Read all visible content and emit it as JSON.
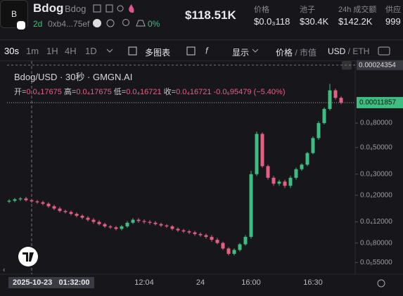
{
  "header": {
    "avatar": "B",
    "symbol": "Bdog",
    "name": "Bdog",
    "age": "2d",
    "address": "0xb4...75ef",
    "change": "0%",
    "market_cap": "$118.51K",
    "stats": [
      {
        "label": "价格",
        "value": "$0.0₃118"
      },
      {
        "label": "池子",
        "value": "$30.4K"
      },
      {
        "label": "24h 成交额",
        "value": "$142.2K"
      },
      {
        "label": "供应",
        "value": "999"
      }
    ]
  },
  "toolbar": {
    "intervals": [
      "30s",
      "1m",
      "1H",
      "4H",
      "1D"
    ],
    "multi_chart": "多图表",
    "display": "显示",
    "price": "价格",
    "market_cap": "市值",
    "usd": "USD",
    "eth": "ETH"
  },
  "chart_data": {
    "type": "candlestick",
    "title": "Bdog/USD · 30秒 · GMGN.AI",
    "ohlc_legend": {
      "open_label": "开=",
      "open": {
        "value": 1.7675e-05,
        "label": "0.0₄17675"
      },
      "high_label": "高=",
      "high": {
        "value": 1.7675e-05,
        "label": "0.0₄17675"
      },
      "low_label": "低=",
      "low": {
        "value": 1.6721e-05,
        "label": "0.0₄16721"
      },
      "close_label": "收=",
      "close": {
        "value": 1.6721e-05,
        "label": "0.0₄16721"
      },
      "change": {
        "value": -9.5479e-07,
        "label": "-0.0₆95479"
      },
      "change_pct": {
        "value": -5.4,
        "label": "(−5.40%)"
      }
    },
    "crosshair": {
      "date": "2025-10-23",
      "time": "01:32:00"
    },
    "log_scale": true,
    "up_color": "#3fbd80",
    "down_color": "#e55f84",
    "ylim": [
      4.7e-06,
      0.00027
    ],
    "yticks": [
      {
        "value": 8e-05,
        "label": "0.0₄80000"
      },
      {
        "value": 5e-05,
        "label": "0.0₄50000"
      },
      {
        "value": 3e-05,
        "label": "0.0₄30000"
      },
      {
        "value": 2e-05,
        "label": "0.0₄20000"
      },
      {
        "value": 1.2e-05,
        "label": "0.0₄12000"
      },
      {
        "value": 8e-06,
        "label": "0.0₅80000"
      },
      {
        "value": 5.5e-06,
        "label": "0.0₅55000"
      }
    ],
    "current_price": 0.00011857,
    "max_price": 0.00024354,
    "categories": [
      null,
      null,
      null,
      null,
      null,
      null,
      null,
      null,
      null,
      null,
      null,
      null,
      null,
      null,
      null,
      null,
      null,
      null,
      null,
      null,
      null,
      null,
      null,
      null,
      "12:04",
      null,
      null,
      null,
      null,
      null,
      null,
      null,
      null,
      null,
      "24",
      null,
      null,
      null,
      null,
      null,
      null,
      null,
      null,
      "16:00",
      null,
      null,
      null,
      null,
      null,
      null,
      null,
      null,
      null,
      null,
      "16:30",
      null,
      null,
      null,
      null,
      null
    ],
    "open": [
      1.77e-05,
      1.8e-05,
      1.85e-05,
      1.88e-05,
      1.82e-05,
      1.78e-05,
      1.75e-05,
      1.7e-05,
      1.62e-05,
      1.55e-05,
      1.48e-05,
      1.45e-05,
      1.4e-05,
      1.35e-05,
      1.3e-05,
      1.25e-05,
      1.2e-05,
      1.15e-05,
      1.1e-05,
      1.08e-05,
      1.05e-05,
      1.1e-05,
      1.18e-05,
      1.25e-05,
      1.22e-05,
      1.2e-05,
      1.18e-05,
      1.15e-05,
      1.12e-05,
      1.1e-05,
      1.05e-05,
      1.02e-05,
      1e-05,
      9.8e-06,
      9.5e-06,
      9.3e-06,
      9e-06,
      8.5e-06,
      8e-06,
      7.2e-06,
      6.5e-06,
      7e-06,
      7.8e-06,
      9e-06,
      3e-05,
      6.5e-05,
      3.5e-05,
      2.8e-05,
      2.5e-05,
      2.6e-05,
      2.4e-05,
      2.8e-05,
      3.3e-05,
      3.6e-05,
      4.5e-05,
      6e-05,
      8e-05,
      0.000105,
      0.00015,
      0.00013
    ],
    "high": [
      1.85e-05,
      1.9e-05,
      1.93e-05,
      1.94e-05,
      1.87e-05,
      1.83e-05,
      1.8e-05,
      1.75e-05,
      1.67e-05,
      1.6e-05,
      1.52e-05,
      1.49e-05,
      1.44e-05,
      1.39e-05,
      1.34e-05,
      1.29e-05,
      1.24e-05,
      1.18e-05,
      1.13e-05,
      1.11e-05,
      1.13e-05,
      1.22e-05,
      1.29e-05,
      1.29e-05,
      1.26e-05,
      1.24e-05,
      1.22e-05,
      1.18e-05,
      1.15e-05,
      1.13e-05,
      1.08e-05,
      1.05e-05,
      1.03e-05,
      1.01e-05,
      9.8e-06,
      9.6e-06,
      9.3e-06,
      8.8e-06,
      8.2e-06,
      7.4e-06,
      7.2e-06,
      8e-06,
      9.3e-06,
      3.2e-05,
      6.8e-05,
      6.7e-05,
      3.6e-05,
      2.9e-05,
      2.7e-05,
      2.7e-05,
      2.9e-05,
      3.4e-05,
      3.7e-05,
      4.6e-05,
      6.2e-05,
      8.3e-05,
      0.000108,
      0.00017,
      0.000155,
      0.000134
    ],
    "low": [
      1.72e-05,
      1.75e-05,
      1.79e-05,
      1.77e-05,
      1.73e-05,
      1.7e-05,
      1.65e-05,
      1.57e-05,
      1.5e-05,
      1.44e-05,
      1.41e-05,
      1.36e-05,
      1.31e-05,
      1.26e-05,
      1.21e-05,
      1.16e-05,
      1.12e-05,
      1.07e-05,
      1.05e-05,
      1.02e-05,
      1.02e-05,
      1.07e-05,
      1.15e-05,
      1.18e-05,
      1.16e-05,
      1.14e-05,
      1.12e-05,
      1.09e-05,
      1.07e-05,
      1.02e-05,
      9.9e-06,
      9.7e-06,
      9.5e-06,
      9.2e-06,
      9e-06,
      8.7e-06,
      8.2e-06,
      7.8e-06,
      7e-06,
      6.3e-06,
      6.3e-06,
      6.8e-06,
      7.6e-06,
      8.7e-06,
      2.9e-05,
      3.4e-05,
      2.7e-05,
      2.4e-05,
      2.4e-05,
      2.3e-05,
      2.3e-05,
      2.7e-05,
      3.2e-05,
      3.5e-05,
      4.4e-05,
      5.8e-05,
      7.8e-05,
      0.000102,
      0.000126,
      0.000115
    ],
    "close": [
      1.8e-05,
      1.85e-05,
      1.88e-05,
      1.82e-05,
      1.78e-05,
      1.75e-05,
      1.7e-05,
      1.62e-05,
      1.55e-05,
      1.48e-05,
      1.45e-05,
      1.4e-05,
      1.35e-05,
      1.3e-05,
      1.25e-05,
      1.2e-05,
      1.15e-05,
      1.1e-05,
      1.08e-05,
      1.05e-05,
      1.1e-05,
      1.18e-05,
      1.25e-05,
      1.22e-05,
      1.2e-05,
      1.18e-05,
      1.15e-05,
      1.12e-05,
      1.1e-05,
      1.05e-05,
      1.02e-05,
      1e-05,
      9.8e-06,
      9.5e-06,
      9.3e-06,
      9e-06,
      8.5e-06,
      8e-06,
      7.2e-06,
      6.5e-06,
      7e-06,
      7.8e-06,
      9e-06,
      3e-05,
      6.5e-05,
      3.5e-05,
      2.8e-05,
      2.5e-05,
      2.6e-05,
      2.4e-05,
      2.8e-05,
      3.3e-05,
      3.6e-05,
      4.5e-05,
      6e-05,
      8e-05,
      0.000105,
      0.00015,
      0.00013,
      0.00011857
    ]
  }
}
